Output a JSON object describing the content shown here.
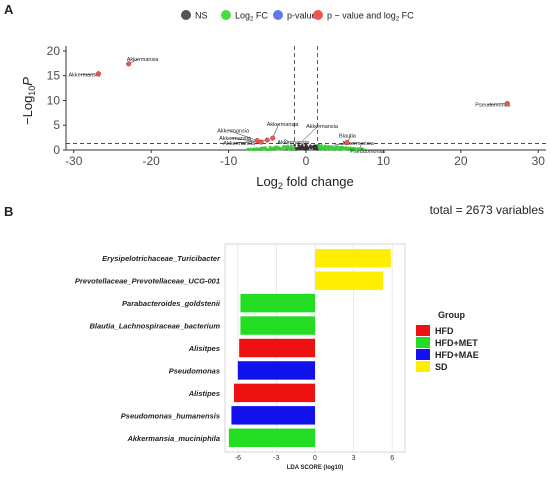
{
  "panels": {
    "a": "A",
    "b": "B"
  },
  "chart_data": [
    {
      "type": "scatter",
      "xlabel_main": "Log",
      "xlabel_sub": "2",
      "xlabel_rest": " fold change",
      "ylabel_main": "−Log",
      "ylabel_sub": "10",
      "ylabel_rest": "P",
      "xlim": [
        -31,
        31
      ],
      "ylim": [
        0,
        21
      ],
      "x_ticks": [
        -30,
        -20,
        -10,
        0,
        10,
        20,
        30
      ],
      "x_tick_labels": [
        "-30",
        "-20",
        "-10",
        "0",
        "10",
        "20",
        "30"
      ],
      "y_ticks": [
        0,
        5,
        10,
        15,
        20
      ],
      "y_tick_labels": [
        "0",
        "5",
        "10",
        "15",
        "20"
      ],
      "cutoffs": {
        "fc": [
          -1.5,
          1.5
        ],
        "p": 1.3
      },
      "legend": [
        {
          "label": "NS",
          "color": "#555555"
        },
        {
          "label": "Log",
          "sub": "2",
          "rest": " FC",
          "color": "#44dd44"
        },
        {
          "label": "p-value",
          "color": "#6677ee"
        },
        {
          "label": "p − value and log",
          "sub": "2",
          "rest": " FC",
          "color": "#ee5555"
        }
      ],
      "points_red": [
        {
          "x": -26.8,
          "y": 15.4
        },
        {
          "x": -22.9,
          "y": 17.4
        },
        {
          "x": 26.0,
          "y": 9.4
        },
        {
          "x": -6.3,
          "y": 1.9
        },
        {
          "x": -5.8,
          "y": 1.6
        },
        {
          "x": -5.0,
          "y": 2.0
        },
        {
          "x": -4.3,
          "y": 2.4
        },
        {
          "x": 5.3,
          "y": 1.5
        }
      ],
      "labels": [
        {
          "text": "Akkermansia",
          "x": -26.8,
          "y": 15.4
        },
        {
          "text": "Akkermansia",
          "x": -22.9,
          "y": 17.4
        },
        {
          "text": "Pseudomonas",
          "x": 26.0,
          "y": 9.4
        },
        {
          "text": "Akkermansia",
          "x": -6.3,
          "y": 1.9
        },
        {
          "text": "Akkermansia",
          "x": -5.8,
          "y": 1.6
        },
        {
          "text": "Akkermansia",
          "x": -5.0,
          "y": 2.0
        },
        {
          "text": "Akkermansia",
          "x": -4.3,
          "y": 2.4
        },
        {
          "text": "Akkermansia",
          "x": -2.8,
          "y": 2.2
        },
        {
          "text": "Akkermansia",
          "x": -0.5,
          "y": 1.8
        },
        {
          "text": "Akkermansia",
          "x": 3.6,
          "y": 1.0
        },
        {
          "text": "Blautia",
          "x": 5.3,
          "y": 1.5
        },
        {
          "text": "Pseudomonas",
          "x": 7.0,
          "y": 1.0
        }
      ],
      "total_text": "total = 2673 variables"
    },
    {
      "type": "bar",
      "orientation": "horizontal",
      "title": "",
      "xlabel": "LDA SCORE (log10)",
      "xlim": [
        -7,
        7
      ],
      "x_ticks": [
        -6,
        -3,
        0,
        3,
        6
      ],
      "x_tick_labels": [
        "-6",
        "-3",
        "0",
        "3",
        "6"
      ],
      "categories": [
        "Erysipelotrichaceae_Turicibacter",
        "Prevotellaceae_Prevotellaceae_UCG-001",
        "Parabacteroides_goldstenii",
        "Blautia_Lachnospiraceae_bacterium",
        "Alisitpes",
        "Pseudomonas",
        "Alistipes",
        "Pseudomonas_humanensis",
        "Akkermansia_muciniphila"
      ],
      "values": [
        5.9,
        5.3,
        -5.8,
        -5.8,
        -5.9,
        -6.0,
        -6.3,
        -6.5,
        -6.7
      ],
      "groups": [
        "SD",
        "SD",
        "HFD+MET",
        "HFD+MET",
        "HFD",
        "HFD+MAE",
        "HFD",
        "HFD+MAE",
        "HFD+MET"
      ],
      "legend_title": "Group",
      "legend": [
        {
          "label": "HFD",
          "color": "#ee1111"
        },
        {
          "label": "HFD+MET",
          "color": "#22dd22"
        },
        {
          "label": "HFD+MAE",
          "color": "#1111ee"
        },
        {
          "label": "SD",
          "color": "#ffee00"
        }
      ]
    }
  ]
}
